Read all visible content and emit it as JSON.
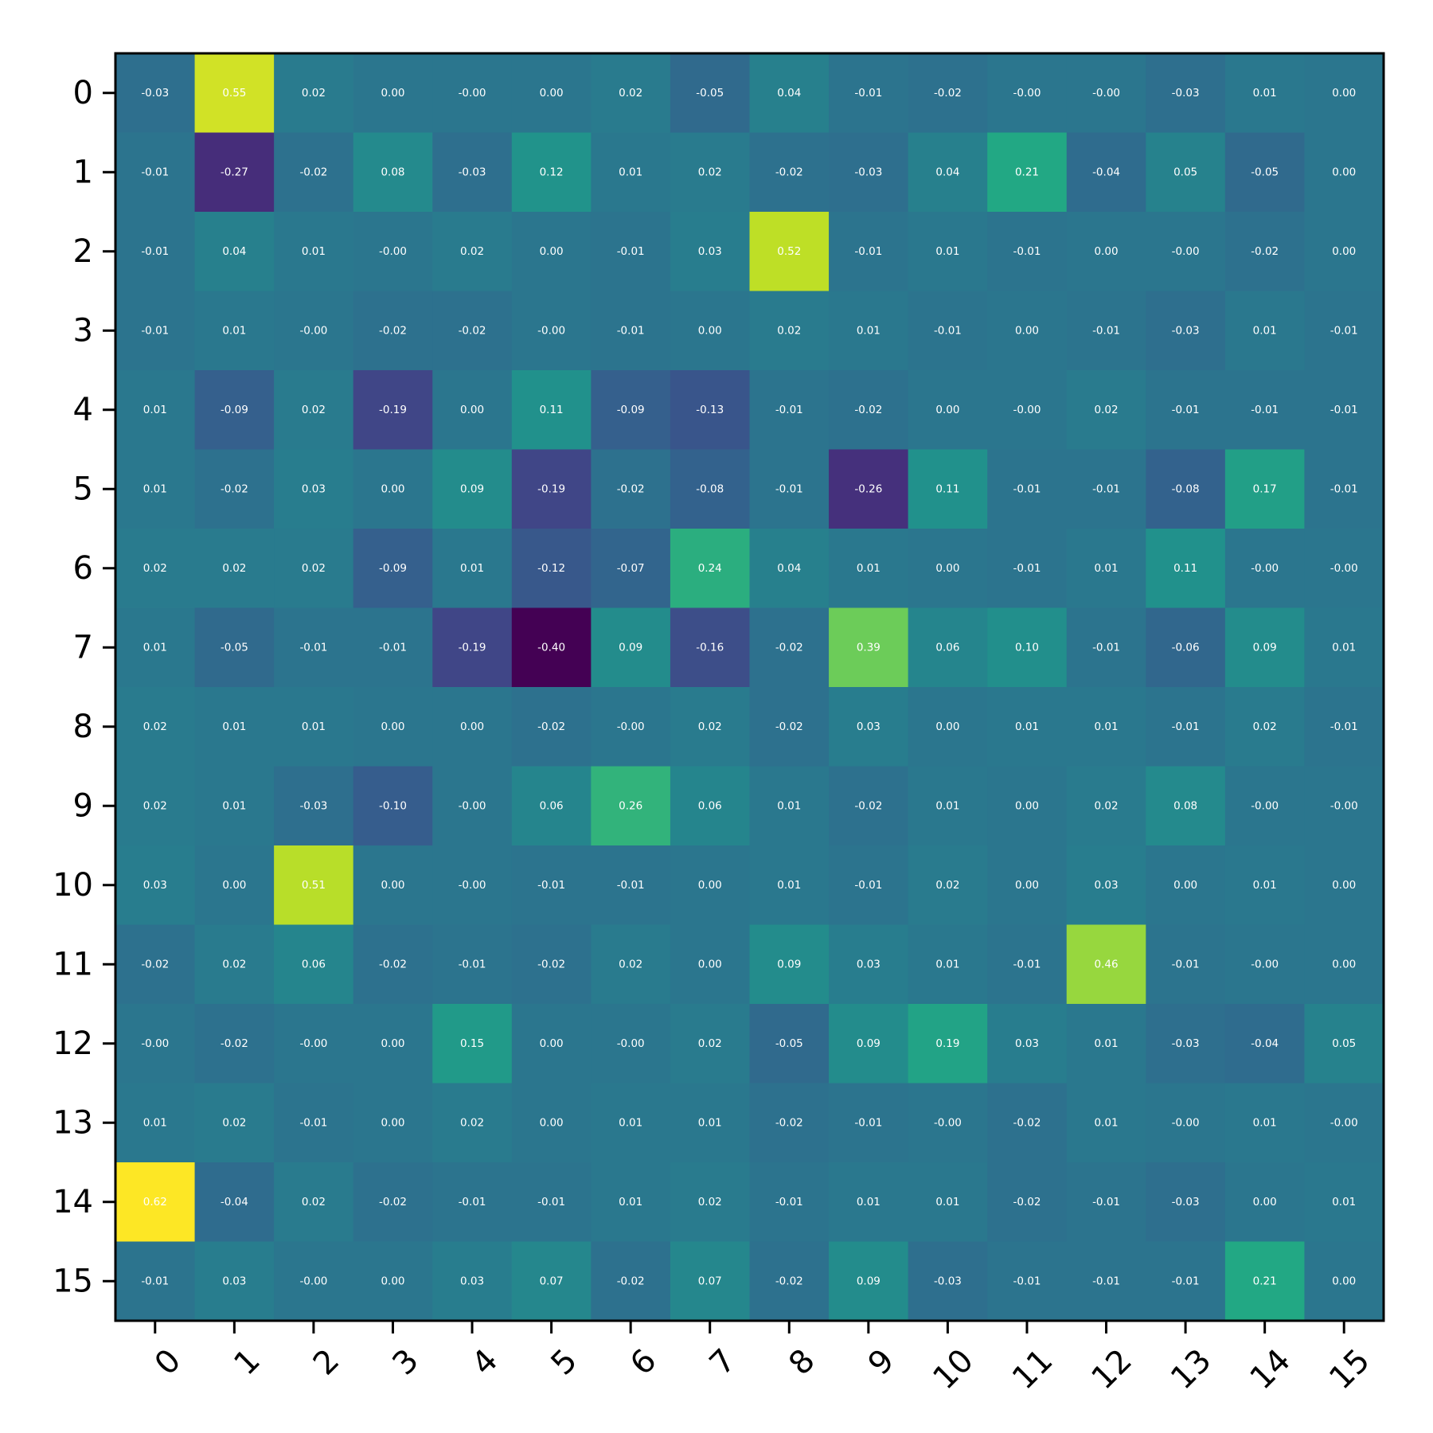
{
  "chart_data": {
    "type": "heatmap",
    "colormap": "viridis",
    "value_range": [
      -0.4,
      0.62
    ],
    "x_tick_labels": [
      "0",
      "1",
      "2",
      "3",
      "4",
      "5",
      "6",
      "7",
      "8",
      "9",
      "10",
      "11",
      "12",
      "13",
      "14",
      "15"
    ],
    "y_tick_labels": [
      "0",
      "1",
      "2",
      "3",
      "4",
      "5",
      "6",
      "7",
      "8",
      "9",
      "10",
      "11",
      "12",
      "13",
      "14",
      "15"
    ],
    "x_tick_rotation_deg": 45,
    "annotation_color": "#ffffff",
    "grid": false,
    "values": [
      [
        -0.03,
        0.55,
        0.02,
        0.0,
        -0.0,
        0.0,
        0.02,
        -0.05,
        0.04,
        -0.01,
        -0.02,
        -0.0,
        -0.0,
        -0.03,
        0.01,
        0.0
      ],
      [
        -0.01,
        -0.27,
        -0.02,
        0.08,
        -0.03,
        0.12,
        0.01,
        0.02,
        -0.02,
        -0.03,
        0.04,
        0.21,
        -0.04,
        0.05,
        -0.05,
        0.0
      ],
      [
        -0.01,
        0.04,
        0.01,
        -0.0,
        0.02,
        0.0,
        -0.01,
        0.03,
        0.52,
        -0.01,
        0.01,
        -0.01,
        0.0,
        -0.0,
        -0.02,
        0.0
      ],
      [
        -0.01,
        0.01,
        -0.0,
        -0.02,
        -0.02,
        -0.0,
        -0.01,
        0.0,
        0.02,
        0.01,
        -0.01,
        0.0,
        -0.01,
        -0.03,
        0.01,
        -0.01
      ],
      [
        0.01,
        -0.09,
        0.02,
        -0.19,
        0.0,
        0.11,
        -0.09,
        -0.13,
        -0.01,
        -0.02,
        0.0,
        -0.0,
        0.02,
        -0.01,
        -0.01,
        -0.01
      ],
      [
        0.01,
        -0.02,
        0.03,
        0.0,
        0.09,
        -0.19,
        -0.02,
        -0.08,
        -0.01,
        -0.26,
        0.11,
        -0.01,
        -0.01,
        -0.08,
        0.17,
        -0.01
      ],
      [
        0.02,
        0.02,
        0.02,
        -0.09,
        0.01,
        -0.12,
        -0.07,
        0.24,
        0.04,
        0.01,
        0.0,
        -0.01,
        0.01,
        0.11,
        -0.0,
        -0.0
      ],
      [
        0.01,
        -0.05,
        -0.01,
        -0.01,
        -0.19,
        -0.4,
        0.09,
        -0.16,
        -0.02,
        0.39,
        0.06,
        0.1,
        -0.01,
        -0.06,
        0.09,
        0.01
      ],
      [
        0.02,
        0.01,
        0.01,
        0.0,
        0.0,
        -0.02,
        -0.0,
        0.02,
        -0.02,
        0.03,
        0.0,
        0.01,
        0.01,
        -0.01,
        0.02,
        -0.01
      ],
      [
        0.02,
        0.01,
        -0.03,
        -0.1,
        -0.0,
        0.06,
        0.26,
        0.06,
        0.01,
        -0.02,
        0.01,
        0.0,
        0.02,
        0.08,
        -0.0,
        -0.0
      ],
      [
        0.03,
        0.0,
        0.51,
        0.0,
        -0.0,
        -0.01,
        -0.01,
        0.0,
        0.01,
        -0.01,
        0.02,
        0.0,
        0.03,
        0.0,
        0.01,
        0.0
      ],
      [
        -0.02,
        0.02,
        0.06,
        -0.02,
        -0.01,
        -0.02,
        0.02,
        0.0,
        0.09,
        0.03,
        0.01,
        -0.01,
        0.46,
        -0.01,
        -0.0,
        0.0
      ],
      [
        -0.0,
        -0.02,
        -0.0,
        0.0,
        0.15,
        0.0,
        -0.0,
        0.02,
        -0.05,
        0.09,
        0.19,
        0.03,
        0.01,
        -0.03,
        -0.04,
        0.05
      ],
      [
        0.01,
        0.02,
        -0.01,
        0.0,
        0.02,
        0.0,
        0.01,
        0.01,
        -0.02,
        -0.01,
        -0.0,
        -0.02,
        0.01,
        -0.0,
        0.01,
        -0.0
      ],
      [
        0.62,
        -0.04,
        0.02,
        -0.02,
        -0.01,
        -0.01,
        0.01,
        0.02,
        -0.01,
        0.01,
        0.01,
        -0.02,
        -0.01,
        -0.03,
        0.0,
        0.01
      ],
      [
        -0.01,
        0.03,
        -0.0,
        0.0,
        0.03,
        0.07,
        -0.02,
        0.07,
        -0.02,
        0.09,
        -0.03,
        -0.01,
        -0.01,
        -0.01,
        0.21,
        0.0
      ]
    ]
  }
}
